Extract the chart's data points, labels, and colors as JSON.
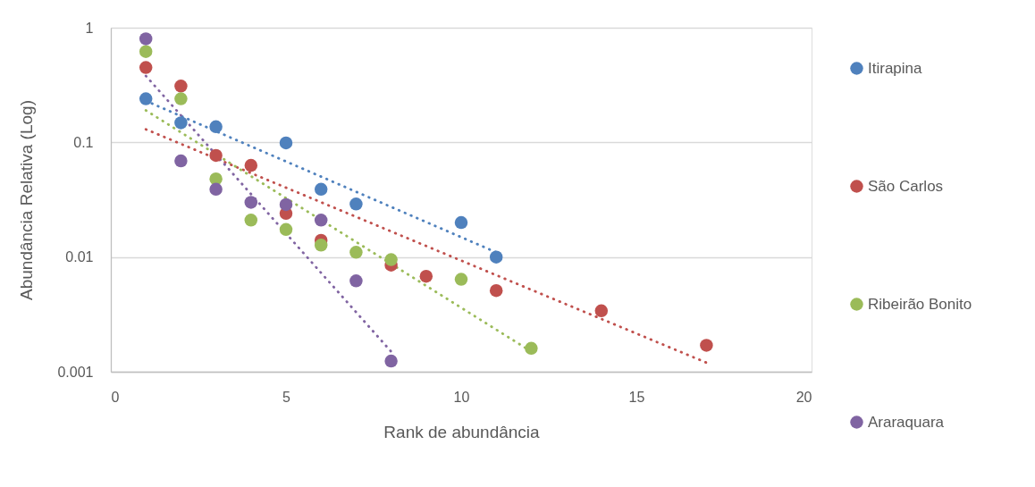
{
  "chart_data": {
    "type": "scatter",
    "xlabel": "Rank de abundância",
    "ylabel": "Abundância Relativa (Log)",
    "xlim": [
      0,
      20
    ],
    "xticks": [
      0,
      5,
      10,
      15,
      20
    ],
    "ylim": [
      0.001,
      1
    ],
    "yticks": [
      0.001,
      0.01,
      0.1,
      1
    ],
    "log": "y",
    "grid": "y",
    "legend": "right",
    "marker": "circle",
    "series": [
      {
        "name": "Itirapina",
        "color": "#4f81bd",
        "x": [
          1,
          2,
          3,
          5,
          6,
          7,
          10,
          11
        ],
        "values": [
          0.24,
          0.148,
          0.137,
          0.099,
          0.039,
          0.029,
          0.02,
          0.01
        ]
      },
      {
        "name": "São Carlos",
        "color": "#c0504d",
        "x": [
          1,
          2,
          3,
          4,
          5,
          6,
          8,
          9,
          11,
          14,
          17
        ],
        "values": [
          0.45,
          0.31,
          0.077,
          0.063,
          0.024,
          0.014,
          0.0085,
          0.0068,
          0.0051,
          0.0034,
          0.0017
        ]
      },
      {
        "name": "Ribeirão Bonito",
        "color": "#9bbb59",
        "x": [
          1,
          2,
          3,
          4,
          5,
          6,
          7,
          8,
          10,
          12
        ],
        "values": [
          0.62,
          0.24,
          0.048,
          0.021,
          0.0174,
          0.0127,
          0.011,
          0.0095,
          0.0064,
          0.0016
        ]
      },
      {
        "name": "Araraquara",
        "color": "#8064a2",
        "x": [
          1,
          2,
          3,
          4,
          5,
          6,
          7,
          8
        ],
        "values": [
          0.8,
          0.069,
          0.039,
          0.03,
          0.0287,
          0.021,
          0.0062,
          0.00124
        ]
      },
      {
        "type": "line",
        "color": "#4f81bd",
        "line_style": "dotted",
        "marker": "none",
        "x": [
          1,
          11
        ],
        "values": [
          0.23,
          0.011
        ]
      },
      {
        "type": "line",
        "color": "#c0504d",
        "line_style": "dotted",
        "marker": "none",
        "x": [
          1,
          17
        ],
        "values": [
          0.13,
          0.0012
        ]
      },
      {
        "type": "line",
        "color": "#9bbb59",
        "line_style": "dotted",
        "marker": "none",
        "x": [
          1,
          12
        ],
        "values": [
          0.19,
          0.0015
        ]
      },
      {
        "type": "line",
        "color": "#8064a2",
        "line_style": "dotted",
        "marker": "none",
        "x": [
          1,
          8
        ],
        "values": [
          0.38,
          0.0015
        ]
      }
    ]
  }
}
